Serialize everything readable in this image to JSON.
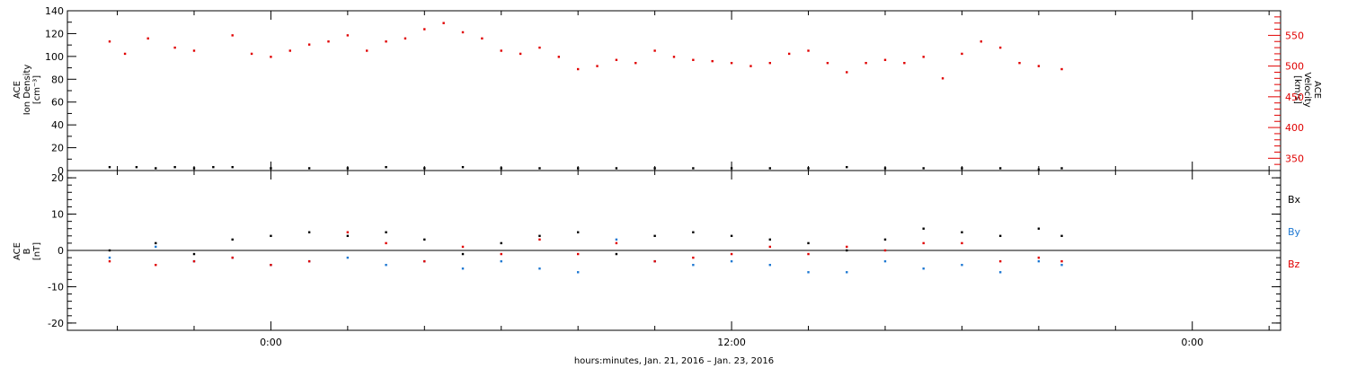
{
  "chart_data": [
    {
      "type": "scatter",
      "panel": "plasma",
      "left_axis": {
        "label_lines": [
          "ACE",
          "Ion Density",
          "[cm⁻³]"
        ],
        "ylim": [
          0,
          140
        ],
        "ticks": [
          "0",
          "20",
          "40",
          "60",
          "80",
          "100",
          "120",
          "140"
        ]
      },
      "right_axis": {
        "label_lines": [
          "ACE",
          "Velocity",
          "[km/s]"
        ],
        "ylim": [
          330,
          590
        ],
        "ticks": [
          "350",
          "400",
          "450",
          "500",
          "550"
        ],
        "color": "#e00000"
      },
      "series": [
        {
          "axis": "left",
          "color": "#000000",
          "x_hours": [
            -4.2,
            -3.5,
            -3.0,
            -2.5,
            -2.0,
            -1.5,
            -1.0,
            0.0,
            1.0,
            2.0,
            3.0,
            4.0,
            5.0,
            6.0,
            7.0,
            8.0,
            9.0,
            10.0,
            11.0,
            12.0,
            13.0,
            14.0,
            15.0,
            16.0,
            17.0,
            18.0,
            19.0,
            20.0,
            20.6
          ],
          "values": [
            3,
            3,
            2,
            3,
            2,
            3,
            3,
            2,
            2,
            2,
            3,
            2,
            3,
            2,
            2,
            2,
            2,
            2,
            2,
            2,
            2,
            2,
            3,
            2,
            2,
            2,
            2,
            1,
            2
          ]
        },
        {
          "axis": "right",
          "color": "#e00000",
          "x_hours": [
            -4.2,
            -3.8,
            -3.2,
            -2.5,
            -2.0,
            -1.0,
            -0.5,
            0.0,
            0.5,
            1.0,
            1.5,
            2.0,
            2.5,
            3.0,
            3.5,
            4.0,
            4.5,
            5.0,
            5.5,
            6.0,
            6.5,
            7.0,
            7.5,
            8.0,
            8.5,
            9.0,
            9.5,
            10.0,
            10.5,
            11.0,
            11.5,
            12.0,
            12.5,
            13.0,
            13.5,
            14.0,
            14.5,
            15.0,
            15.5,
            16.0,
            16.5,
            17.0,
            17.5,
            18.0,
            18.5,
            19.0,
            19.5,
            20.0,
            20.6
          ],
          "values": [
            540,
            520,
            545,
            530,
            525,
            550,
            520,
            515,
            525,
            535,
            540,
            550,
            525,
            540,
            545,
            560,
            570,
            555,
            545,
            525,
            520,
            530,
            515,
            495,
            500,
            510,
            505,
            525,
            515,
            510,
            508,
            505,
            500,
            505,
            520,
            525,
            505,
            490,
            505,
            510,
            505,
            515,
            480,
            520,
            540,
            530,
            505,
            500,
            495
          ]
        }
      ]
    },
    {
      "type": "scatter",
      "panel": "magnetic-field",
      "left_axis": {
        "label_lines": [
          "ACE",
          "B",
          "[nT]"
        ],
        "ylim": [
          -22,
          22
        ],
        "ticks": [
          "-20",
          "-10",
          "0",
          "10",
          "20"
        ]
      },
      "legend": {
        "placement": "right",
        "entries": [
          "Bx",
          "By",
          "Bz"
        ]
      },
      "series": [
        {
          "name": "Bx",
          "color": "#000000",
          "x_hours": [
            -4.2,
            -3.0,
            -2.0,
            -1.0,
            0.0,
            1.0,
            2.0,
            3.0,
            4.0,
            5.0,
            6.0,
            7.0,
            8.0,
            9.0,
            10.0,
            11.0,
            12.0,
            13.0,
            14.0,
            15.0,
            16.0,
            17.0,
            18.0,
            19.0,
            20.0,
            20.6
          ],
          "values": [
            0,
            2,
            -1,
            3,
            4,
            5,
            4,
            5,
            3,
            -1,
            2,
            4,
            5,
            -1,
            4,
            5,
            4,
            3,
            2,
            0,
            3,
            6,
            5,
            4,
            6,
            4
          ]
        },
        {
          "name": "By",
          "color": "#1e78d2",
          "x_hours": [
            -4.2,
            -3.0,
            -2.0,
            -1.0,
            0.0,
            1.0,
            2.0,
            3.0,
            4.0,
            5.0,
            6.0,
            7.0,
            8.0,
            9.0,
            10.0,
            11.0,
            12.0,
            13.0,
            14.0,
            15.0,
            16.0,
            17.0,
            18.0,
            19.0,
            20.0,
            20.6
          ],
          "values": [
            -2,
            1,
            -3,
            -2,
            -4,
            -3,
            -2,
            -4,
            -3,
            -5,
            -3,
            -5,
            -6,
            3,
            -3,
            -4,
            -3,
            -4,
            -6,
            -6,
            -3,
            -5,
            -4,
            -6,
            -3,
            -4
          ]
        },
        {
          "name": "Bz",
          "color": "#e00000",
          "x_hours": [
            -4.2,
            -3.0,
            -2.0,
            -1.0,
            0.0,
            1.0,
            2.0,
            3.0,
            4.0,
            5.0,
            6.0,
            7.0,
            8.0,
            9.0,
            10.0,
            11.0,
            12.0,
            13.0,
            14.0,
            15.0,
            16.0,
            17.0,
            18.0,
            19.0,
            20.0,
            20.6
          ],
          "values": [
            -3,
            -4,
            -3,
            -2,
            -4,
            -3,
            5,
            2,
            -3,
            1,
            -1,
            3,
            -1,
            2,
            -3,
            -2,
            -1,
            1,
            -1,
            1,
            0,
            2,
            2,
            -3,
            -2,
            -3
          ]
        }
      ]
    }
  ],
  "x_axis": {
    "range_hours": [
      -5.3,
      26.3
    ],
    "major_ticks_hours": [
      0,
      12,
      24
    ],
    "tick_labels": [
      "0:00",
      "12:00",
      "0:00"
    ],
    "minor_tick_every_hours": 2,
    "label": "hours:minutes, Jan. 21, 2016 – Jan. 23, 2016"
  }
}
